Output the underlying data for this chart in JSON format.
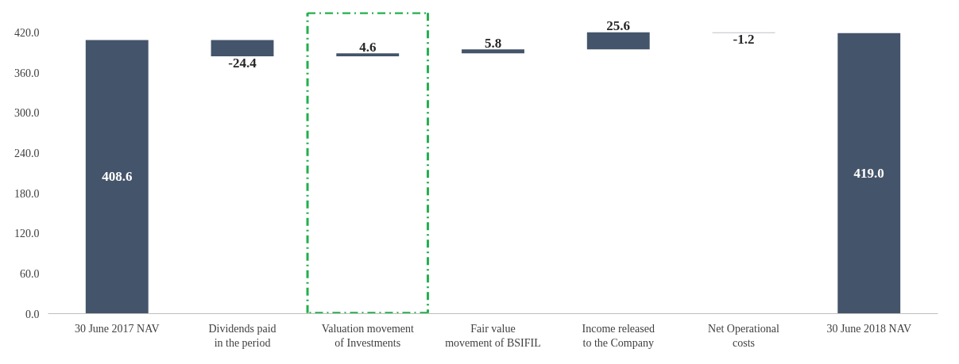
{
  "chart_data": {
    "type": "bar",
    "categories": [
      "30 June 2017 NAV",
      "Dividends paid in the period",
      "Valuation movement of Investments",
      "Fair value movement of BSIFIL",
      "Income released to the Company",
      "Net Operational costs",
      "30 June 2018 NAV"
    ],
    "values": [
      408.6,
      -24.4,
      4.6,
      5.8,
      25.6,
      -1.2,
      419.0
    ],
    "base": [
      0,
      408.6,
      384.2,
      388.8,
      394.6,
      420.2,
      0
    ],
    "colors": [
      "#44546a",
      "#44546a",
      "#44546a",
      "#44546a",
      "#44546a",
      "#c0c0c8",
      "#44546a"
    ],
    "value_labels": [
      "408.6",
      "-24.4",
      "4.6",
      "5.8",
      "25.6",
      "-1.2",
      "419.0"
    ],
    "ylim": [
      0,
      450
    ],
    "yticks": [
      {
        "value": 0,
        "label": "0.0"
      },
      {
        "value": 60,
        "label": "60.0"
      },
      {
        "value": 120,
        "label": "120.0"
      },
      {
        "value": 180,
        "label": "180.0"
      },
      {
        "value": 240,
        "label": "240.0"
      },
      {
        "value": 300,
        "label": "300.0"
      },
      {
        "value": 360,
        "label": "360.0"
      },
      {
        "value": 420,
        "label": "420.0"
      }
    ],
    "grid": false
  }
}
